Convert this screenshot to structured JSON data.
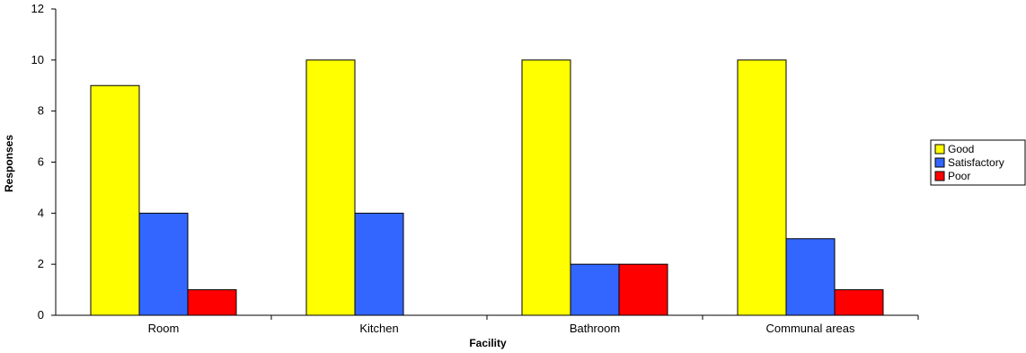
{
  "chart_data": {
    "type": "bar",
    "title": "",
    "xlabel": "Facility",
    "ylabel": "Responses",
    "categories": [
      "Room",
      "Kitchen",
      "Bathroom",
      "Communal areas"
    ],
    "series": [
      {
        "name": "Good",
        "values": [
          9,
          10,
          10,
          10
        ],
        "color": "#ffff00"
      },
      {
        "name": "Satisfactory",
        "values": [
          4,
          4,
          2,
          3
        ],
        "color": "#3366ff"
      },
      {
        "name": "Poor",
        "values": [
          1,
          0,
          2,
          1
        ],
        "color": "#ff0000"
      }
    ],
    "ylim": [
      0,
      12
    ],
    "yticks": [
      0,
      2,
      4,
      6,
      8,
      10,
      12
    ],
    "grid": false,
    "legend_position": "right"
  }
}
